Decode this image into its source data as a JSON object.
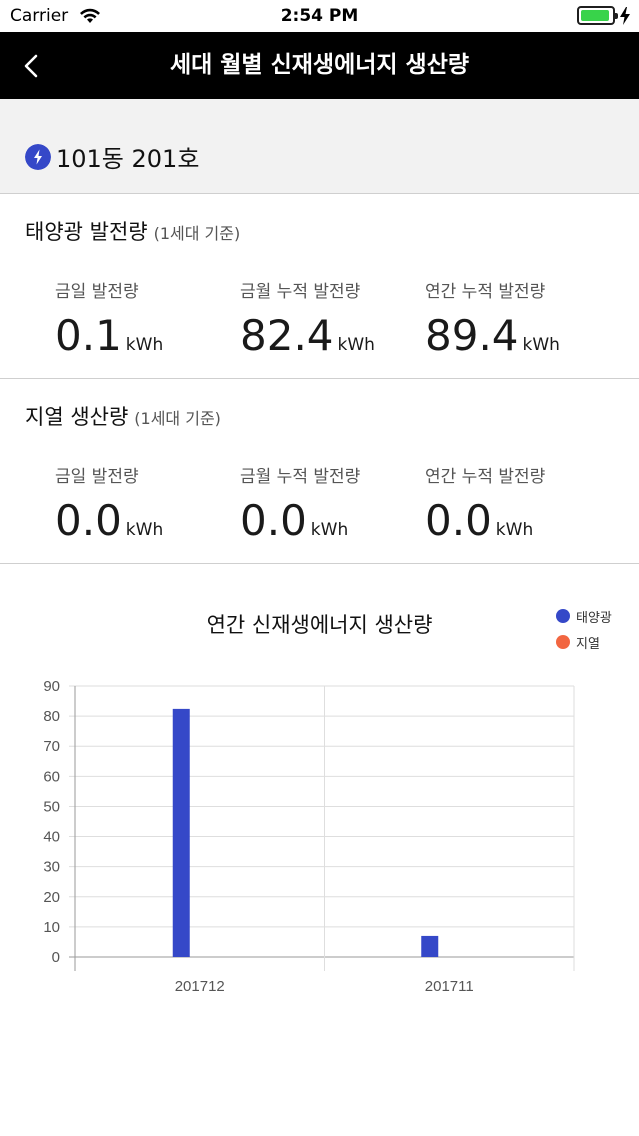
{
  "status_bar": {
    "carrier": "Carrier",
    "time": "2:54 PM",
    "battery_level": 0.92
  },
  "nav": {
    "title": "세대 월별 신재생에너지 생산량"
  },
  "unit": {
    "label": "101동 201호"
  },
  "solar": {
    "title": "태양광 발전량",
    "basis": "(1세대 기준)",
    "stats": [
      {
        "label": "금일 발전량",
        "value": "0.1",
        "unit": "kWh"
      },
      {
        "label": "금월 누적 발전량",
        "value": "82.4",
        "unit": "kWh"
      },
      {
        "label": "연간 누적 발전량",
        "value": "89.4",
        "unit": "kWh"
      }
    ]
  },
  "geothermal": {
    "title": "지열 생산량",
    "basis": "(1세대 기준)",
    "stats": [
      {
        "label": "금일 발전량",
        "value": "0.0",
        "unit": "kWh"
      },
      {
        "label": "금월 누적 발전량",
        "value": "0.0",
        "unit": "kWh"
      },
      {
        "label": "연간 누적 발전량",
        "value": "0.0",
        "unit": "kWh"
      }
    ]
  },
  "colors": {
    "solar": "#3548c8",
    "geothermal": "#f26641",
    "grid": "#dedede",
    "axis": "#9a9a9a"
  },
  "chart_data": {
    "type": "bar",
    "title": "연간 신재생에너지 생산량",
    "categories": [
      "201712",
      "201711"
    ],
    "series": [
      {
        "name": "태양광",
        "values": [
          82.4,
          7.0
        ]
      },
      {
        "name": "지열",
        "values": [
          0,
          0
        ]
      }
    ],
    "yticks": [
      0,
      10,
      20,
      30,
      40,
      50,
      60,
      70,
      80,
      90
    ],
    "ylim": [
      0,
      90
    ],
    "grid": true,
    "legend": "top-right"
  }
}
